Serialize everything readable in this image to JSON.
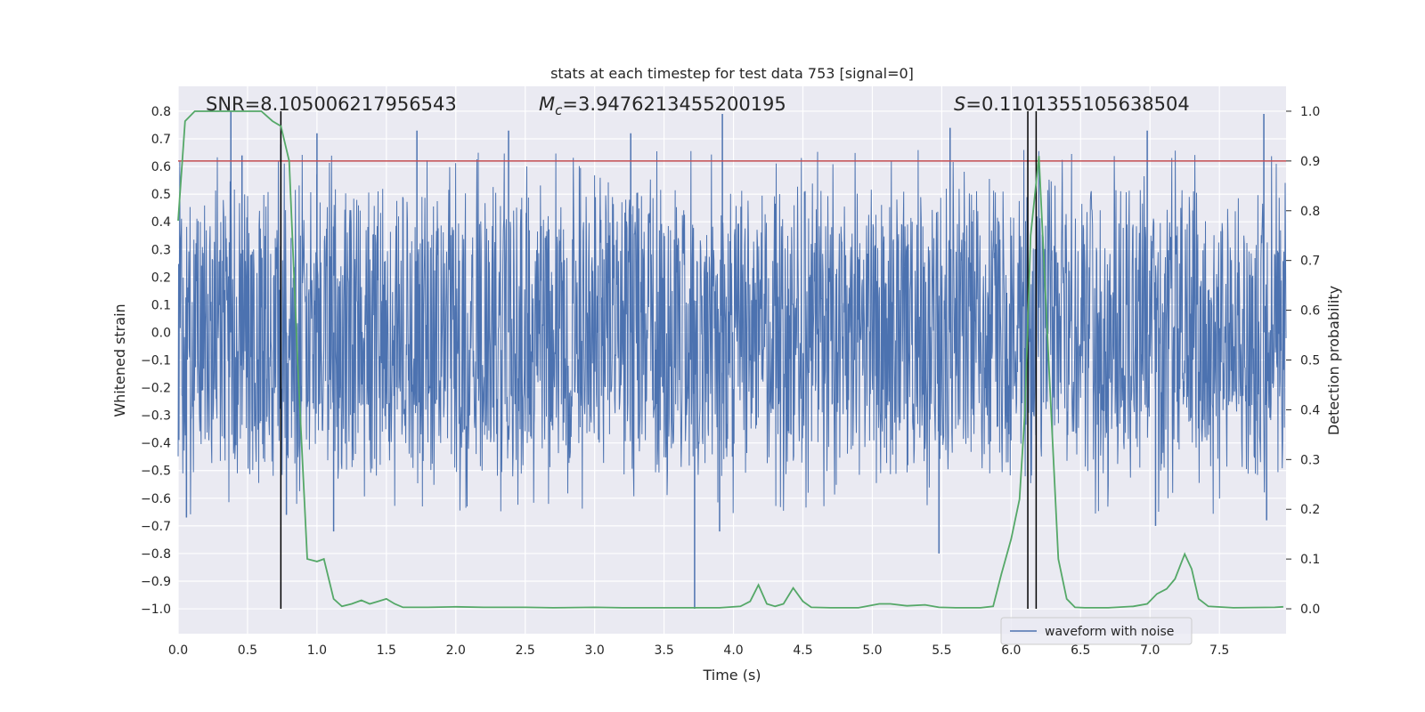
{
  "chart_data": {
    "type": "line",
    "title": "stats at each timestep for test data 753 [signal=0]",
    "xlabel": "Time (s)",
    "ylabel": "Whitened strain",
    "y2label": "Detection probability",
    "xlim": [
      0.0,
      7.98
    ],
    "ylim": [
      -1.09,
      0.89
    ],
    "y2lim": [
      -0.05,
      1.05
    ],
    "x_ticks": [
      0.0,
      0.5,
      1.0,
      1.5,
      2.0,
      2.5,
      3.0,
      3.5,
      4.0,
      4.5,
      5.0,
      5.5,
      6.0,
      6.5,
      7.0,
      7.5
    ],
    "x_tick_labels": [
      "0.0",
      "0.5",
      "1.0",
      "1.5",
      "2.0",
      "2.5",
      "3.0",
      "3.5",
      "4.0",
      "4.5",
      "5.0",
      "5.5",
      "6.0",
      "6.5",
      "7.0",
      "7.5"
    ],
    "y_ticks": [
      0.8,
      0.7,
      0.6,
      0.5,
      0.4,
      0.3,
      0.2,
      0.1,
      0.0,
      -0.1,
      -0.2,
      -0.3,
      -0.4,
      -0.5,
      -0.6,
      -0.7,
      -0.8,
      -0.9,
      -1.0
    ],
    "y_tick_labels": [
      "0.8",
      "0.7",
      "0.6",
      "0.5",
      "0.4",
      "0.3",
      "0.2",
      "0.1",
      "0.0",
      "−0.1",
      "−0.2",
      "−0.3",
      "−0.4",
      "−0.5",
      "−0.6",
      "−0.7",
      "−0.8",
      "−0.9",
      "−1.0"
    ],
    "y2_ticks": [
      1.0,
      0.9,
      0.8,
      0.7,
      0.6,
      0.5,
      0.4,
      0.3,
      0.2,
      0.1,
      0.0
    ],
    "y2_tick_labels": [
      "1.0",
      "0.9",
      "0.8",
      "0.7",
      "0.6",
      "0.5",
      "0.4",
      "0.3",
      "0.2",
      "0.1",
      "0.0"
    ],
    "grid": true,
    "legend": {
      "position": "bottom-right",
      "entries": [
        "waveform with noise"
      ]
    },
    "annotations": {
      "snr": "SNR=8.105006217956543",
      "mc_symbol": "M",
      "mc_subscript": "c",
      "mc_value": "=3.9476213455200195",
      "s_symbol": "S",
      "s_value": "=0.1101355105638504"
    },
    "threshold_line": {
      "y": 0.62,
      "color": "#c44e52"
    },
    "vertical_lines": [
      0.74,
      6.12,
      6.18
    ],
    "waveform": {
      "name": "waveform with noise",
      "color": "#4c72b0",
      "x_range": [
        0.0,
        7.98
      ],
      "typical_core_range": [
        -0.28,
        0.26
      ],
      "spikes": [
        {
          "x": 0.06,
          "y": -0.67
        },
        {
          "x": 0.38,
          "y": 0.8
        },
        {
          "x": 0.46,
          "y": 0.64
        },
        {
          "x": 0.74,
          "y": 0.68
        },
        {
          "x": 0.78,
          "y": -0.66
        },
        {
          "x": 1.0,
          "y": 0.72
        },
        {
          "x": 1.12,
          "y": -0.72
        },
        {
          "x": 1.72,
          "y": 0.73
        },
        {
          "x": 2.38,
          "y": 0.73
        },
        {
          "x": 3.26,
          "y": 0.72
        },
        {
          "x": 3.72,
          "y": -1.0
        },
        {
          "x": 3.92,
          "y": 0.79
        },
        {
          "x": 3.9,
          "y": -0.72
        },
        {
          "x": 5.48,
          "y": -0.8
        },
        {
          "x": 5.56,
          "y": 0.74
        },
        {
          "x": 6.98,
          "y": 0.73
        },
        {
          "x": 7.04,
          "y": -0.7
        },
        {
          "x": 7.82,
          "y": 0.79
        },
        {
          "x": 7.84,
          "y": -0.68
        }
      ]
    },
    "probability": {
      "color": "#55a868",
      "x": [
        0.0,
        0.05,
        0.12,
        0.25,
        0.4,
        0.6,
        0.68,
        0.74,
        0.8,
        0.86,
        0.93,
        1.0,
        1.05,
        1.12,
        1.18,
        1.25,
        1.32,
        1.38,
        1.44,
        1.5,
        1.56,
        1.62,
        1.8,
        2.0,
        2.2,
        2.5,
        2.7,
        3.0,
        3.2,
        3.5,
        3.7,
        3.9,
        4.05,
        4.12,
        4.18,
        4.24,
        4.3,
        4.36,
        4.43,
        4.5,
        4.56,
        4.7,
        4.9,
        5.05,
        5.13,
        5.25,
        5.38,
        5.48,
        5.6,
        5.78,
        5.87,
        5.93,
        6.0,
        6.06,
        6.1,
        6.14,
        6.2,
        6.27,
        6.34,
        6.4,
        6.46,
        6.53,
        6.7,
        6.88,
        6.98,
        7.05,
        7.12,
        7.18,
        7.25,
        7.3,
        7.35,
        7.42,
        7.6,
        7.9,
        7.96
      ],
      "y": [
        0.78,
        0.98,
        1.0,
        1.0,
        1.0,
        1.0,
        0.98,
        0.97,
        0.9,
        0.5,
        0.1,
        0.095,
        0.1,
        0.02,
        0.005,
        0.01,
        0.017,
        0.01,
        0.015,
        0.02,
        0.01,
        0.003,
        0.003,
        0.004,
        0.003,
        0.003,
        0.002,
        0.003,
        0.002,
        0.002,
        0.002,
        0.002,
        0.005,
        0.015,
        0.048,
        0.01,
        0.005,
        0.01,
        0.042,
        0.015,
        0.003,
        0.002,
        0.002,
        0.01,
        0.01,
        0.006,
        0.008,
        0.003,
        0.002,
        0.002,
        0.005,
        0.07,
        0.14,
        0.22,
        0.4,
        0.75,
        0.91,
        0.5,
        0.1,
        0.02,
        0.003,
        0.002,
        0.002,
        0.005,
        0.01,
        0.03,
        0.04,
        0.06,
        0.11,
        0.08,
        0.02,
        0.005,
        0.002,
        0.003,
        0.004
      ]
    }
  }
}
